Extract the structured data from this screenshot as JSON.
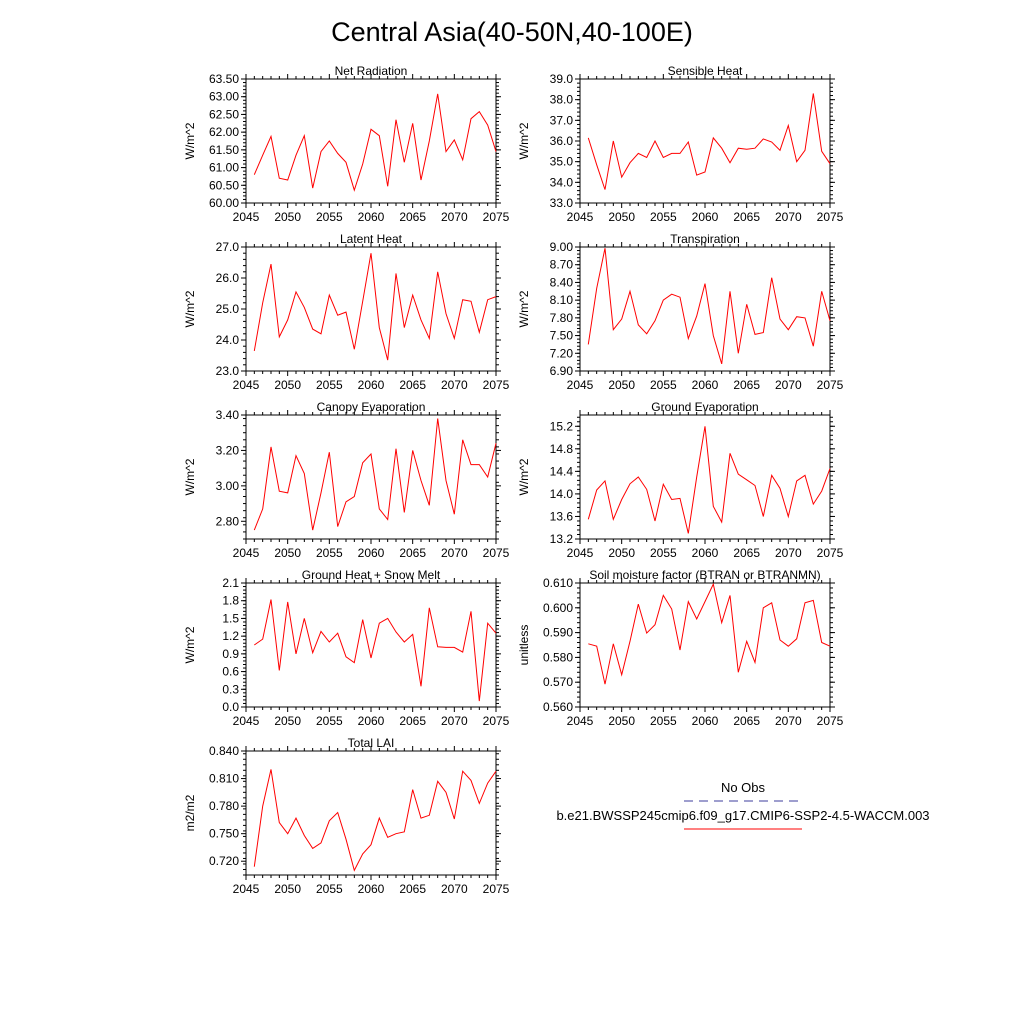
{
  "figure": {
    "title": "Central Asia(40-50N,40-100E)"
  },
  "colors": {
    "model_line": "#ff0000",
    "obs_line": "#3c3c9c"
  },
  "legend": {
    "obs_label": "No Obs",
    "model_label": "b.e21.BWSSP245cmip6.f09_g17.CMIP6-SSP2-4.5-WACCM.003"
  },
  "chart_data": [
    {
      "type": "line",
      "title": "Net Radiation",
      "xlabel": "",
      "ylabel": "W/m^2",
      "xlim": [
        2045,
        2075
      ],
      "ylim": [
        60.0,
        63.5
      ],
      "xticks": [
        2045,
        2050,
        2055,
        2060,
        2065,
        2070,
        2075
      ],
      "yticks": [
        "60.00",
        "60.50",
        "61.00",
        "61.50",
        "62.00",
        "62.50",
        "63.00",
        "63.50"
      ],
      "series": [
        {
          "x_start": 2046,
          "values": [
            60.8,
            61.35,
            61.88,
            60.7,
            60.65,
            61.35,
            61.9,
            60.42,
            61.45,
            61.75,
            61.4,
            61.15,
            60.36,
            61.1,
            62.08,
            61.9,
            60.47,
            62.35,
            61.15,
            62.25,
            60.65,
            61.75,
            63.08,
            61.45,
            61.78,
            61.22,
            62.38,
            62.58,
            62.2,
            61.45
          ]
        }
      ]
    },
    {
      "type": "line",
      "title": "Sensible Heat",
      "xlabel": "",
      "ylabel": "W/m^2",
      "xlim": [
        2045,
        2075
      ],
      "ylim": [
        33.0,
        39.0
      ],
      "xticks": [
        2045,
        2050,
        2055,
        2060,
        2065,
        2070,
        2075
      ],
      "yticks": [
        "33.0",
        "34.0",
        "35.0",
        "36.0",
        "37.0",
        "38.0",
        "39.0"
      ],
      "series": [
        {
          "x_start": 2046,
          "values": [
            36.15,
            34.85,
            33.65,
            36.0,
            34.25,
            34.95,
            35.4,
            35.2,
            36.0,
            35.2,
            35.4,
            35.4,
            35.95,
            34.35,
            34.5,
            36.15,
            35.65,
            34.95,
            35.65,
            35.6,
            35.65,
            36.1,
            35.95,
            35.55,
            36.75,
            35.0,
            35.55,
            38.3,
            35.5,
            34.9
          ]
        }
      ]
    },
    {
      "type": "line",
      "title": "Latent Heat",
      "xlabel": "",
      "ylabel": "W/m^2",
      "xlim": [
        2045,
        2075
      ],
      "ylim": [
        23.0,
        27.0
      ],
      "xticks": [
        2045,
        2050,
        2055,
        2060,
        2065,
        2070,
        2075
      ],
      "yticks": [
        "23.0",
        "24.0",
        "25.0",
        "26.0",
        "27.0"
      ],
      "series": [
        {
          "x_start": 2046,
          "values": [
            23.65,
            25.2,
            26.45,
            24.1,
            24.65,
            25.55,
            25.05,
            24.35,
            24.2,
            25.45,
            24.8,
            24.9,
            23.7,
            25.25,
            26.8,
            24.4,
            23.35,
            26.15,
            24.4,
            25.45,
            24.65,
            24.05,
            26.2,
            24.85,
            24.05,
            25.3,
            25.25,
            24.25,
            25.3,
            25.4
          ]
        }
      ]
    },
    {
      "type": "line",
      "title": "Transpiration",
      "xlabel": "",
      "ylabel": "W/m^2",
      "xlim": [
        2045,
        2075
      ],
      "ylim": [
        6.9,
        9.0
      ],
      "xticks": [
        2045,
        2050,
        2055,
        2060,
        2065,
        2070,
        2075
      ],
      "yticks": [
        "6.90",
        "7.20",
        "7.50",
        "7.80",
        "8.10",
        "8.40",
        "8.70",
        "9.00"
      ],
      "series": [
        {
          "x_start": 2046,
          "values": [
            7.35,
            8.3,
            8.98,
            7.6,
            7.78,
            8.25,
            7.68,
            7.53,
            7.75,
            8.1,
            8.2,
            8.15,
            7.45,
            7.83,
            8.38,
            7.5,
            7.02,
            8.25,
            7.2,
            8.03,
            7.52,
            7.55,
            8.48,
            7.78,
            7.6,
            7.82,
            7.8,
            7.32,
            8.25,
            7.75
          ]
        }
      ]
    },
    {
      "type": "line",
      "title": "Canopy Evaporation",
      "xlabel": "",
      "ylabel": "W/m^2",
      "xlim": [
        2045,
        2075
      ],
      "ylim": [
        2.7,
        3.4
      ],
      "xticks": [
        2045,
        2050,
        2055,
        2060,
        2065,
        2070,
        2075
      ],
      "yticks": [
        "2.80",
        "3.00",
        "3.20",
        "3.40"
      ],
      "series": [
        {
          "x_start": 2046,
          "values": [
            2.75,
            2.87,
            3.22,
            2.97,
            2.96,
            3.17,
            3.07,
            2.75,
            2.96,
            3.19,
            2.77,
            2.91,
            2.94,
            3.13,
            3.18,
            2.87,
            2.81,
            3.21,
            2.85,
            3.2,
            3.03,
            2.89,
            3.38,
            3.03,
            2.84,
            3.26,
            3.12,
            3.12,
            3.05,
            3.24
          ]
        }
      ]
    },
    {
      "type": "line",
      "title": "Ground Evaporation",
      "xlabel": "",
      "ylabel": "W/m^2",
      "xlim": [
        2045,
        2075
      ],
      "ylim": [
        13.2,
        15.4
      ],
      "xticks": [
        2045,
        2050,
        2055,
        2060,
        2065,
        2070,
        2075
      ],
      "yticks": [
        "13.2",
        "13.6",
        "14.0",
        "14.4",
        "14.8",
        "15.2"
      ],
      "series": [
        {
          "x_start": 2046,
          "values": [
            13.55,
            14.07,
            14.23,
            13.55,
            13.9,
            14.18,
            14.3,
            14.08,
            13.52,
            14.17,
            13.9,
            13.92,
            13.3,
            14.3,
            15.2,
            13.78,
            13.5,
            14.72,
            14.35,
            14.25,
            14.15,
            13.6,
            14.33,
            14.1,
            13.6,
            14.23,
            14.33,
            13.82,
            14.05,
            14.45
          ]
        }
      ]
    },
    {
      "type": "line",
      "title": "Ground Heat + Snow Melt",
      "xlabel": "",
      "ylabel": "W/m^2",
      "xlim": [
        2045,
        2075
      ],
      "ylim": [
        0.0,
        2.1
      ],
      "xticks": [
        2045,
        2050,
        2055,
        2060,
        2065,
        2070,
        2075
      ],
      "yticks": [
        "0.0",
        "0.3",
        "0.6",
        "0.9",
        "1.2",
        "1.5",
        "1.8",
        "2.1"
      ],
      "series": [
        {
          "x_start": 2046,
          "values": [
            1.05,
            1.15,
            1.82,
            0.62,
            1.78,
            0.9,
            1.5,
            0.92,
            1.28,
            1.1,
            1.25,
            0.85,
            0.75,
            1.48,
            0.83,
            1.42,
            1.5,
            1.27,
            1.1,
            1.23,
            0.35,
            1.68,
            1.02,
            1.01,
            1.01,
            0.93,
            1.62,
            0.1,
            1.42,
            1.25
          ]
        }
      ]
    },
    {
      "type": "line",
      "title": "Soil moisture factor (BTRAN or BTRANMN)",
      "xlabel": "",
      "ylabel": "unitless",
      "xlim": [
        2045,
        2075
      ],
      "ylim": [
        0.56,
        0.61
      ],
      "xticks": [
        2045,
        2050,
        2055,
        2060,
        2065,
        2070,
        2075
      ],
      "yticks": [
        "0.560",
        "0.570",
        "0.580",
        "0.590",
        "0.600",
        "0.610"
      ],
      "series": [
        {
          "x_start": 2046,
          "values": [
            0.5855,
            0.5845,
            0.5692,
            0.5855,
            0.573,
            0.5865,
            0.6015,
            0.5898,
            0.5932,
            0.605,
            0.5995,
            0.583,
            0.6025,
            0.5955,
            0.6025,
            0.6095,
            0.594,
            0.605,
            0.574,
            0.5865,
            0.578,
            0.6,
            0.602,
            0.587,
            0.5845,
            0.5875,
            0.602,
            0.603,
            0.586,
            0.5845
          ]
        }
      ]
    },
    {
      "type": "line",
      "title": "Total LAI",
      "xlabel": "",
      "ylabel": "m2/m2",
      "xlim": [
        2045,
        2075
      ],
      "ylim": [
        0.705,
        0.84
      ],
      "xticks": [
        2045,
        2050,
        2055,
        2060,
        2065,
        2070,
        2075
      ],
      "yticks": [
        "0.720",
        "0.750",
        "0.780",
        "0.810",
        "0.840"
      ],
      "series": [
        {
          "x_start": 2046,
          "values": [
            0.714,
            0.78,
            0.82,
            0.762,
            0.75,
            0.767,
            0.748,
            0.734,
            0.74,
            0.764,
            0.773,
            0.744,
            0.71,
            0.728,
            0.738,
            0.767,
            0.746,
            0.75,
            0.752,
            0.798,
            0.767,
            0.77,
            0.807,
            0.795,
            0.766,
            0.818,
            0.808,
            0.783,
            0.805,
            0.818
          ]
        }
      ]
    }
  ]
}
